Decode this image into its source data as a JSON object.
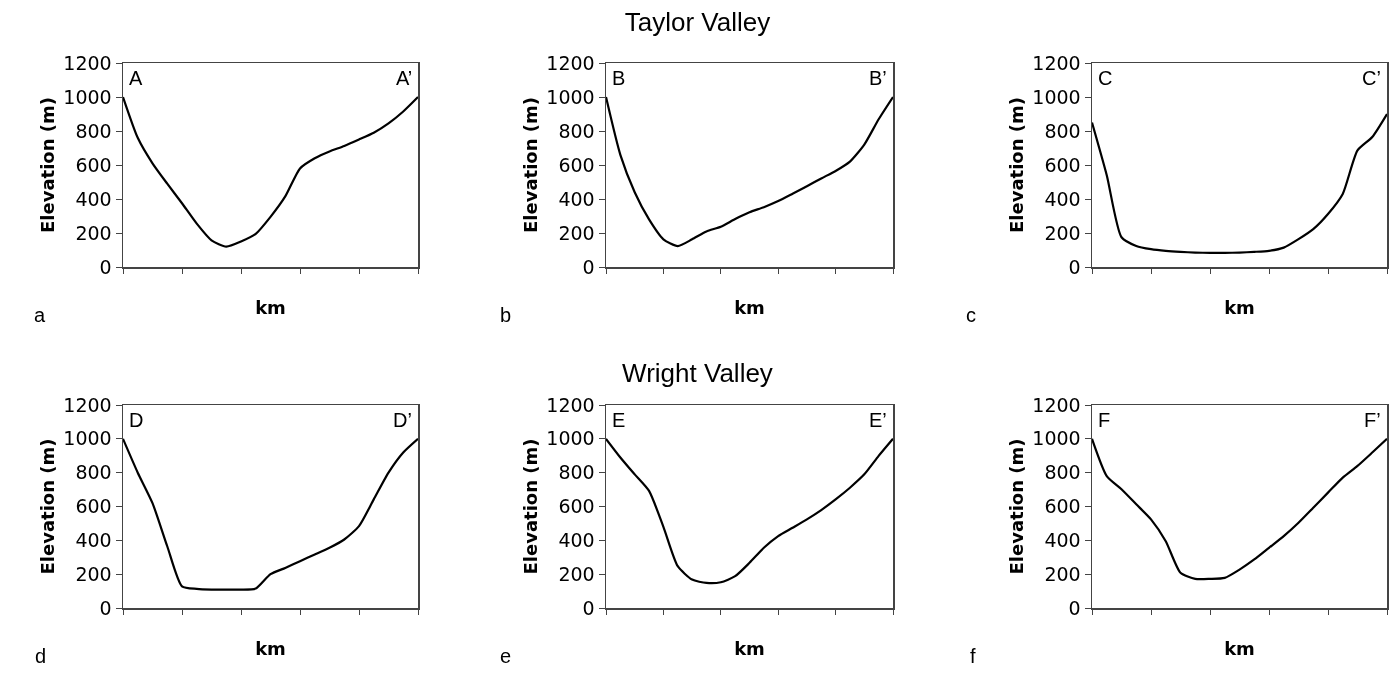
{
  "chart_data": [
    {
      "type": "line",
      "xlabel": "km",
      "ylabel": "Elevation (m)",
      "annotations": [
        "A",
        "A’",
        "a"
      ],
      "categories": [
        null,
        null,
        null,
        null,
        null,
        null,
        null,
        null,
        null,
        null,
        null,
        null,
        null,
        null,
        null,
        null,
        null,
        null,
        null,
        null,
        null
      ],
      "series": [
        {
          "color": "#000000",
          "values": [
            1000,
            760,
            610,
            490,
            375,
            255,
            157,
            120,
            150,
            195,
            295,
            415,
            580,
            640,
            680,
            712,
            750,
            790,
            845,
            915,
            1000
          ]
        }
      ],
      "ylim": [
        0,
        1200
      ],
      "yticks": [
        0,
        200,
        400,
        600,
        800,
        1000,
        1200
      ],
      "tick_labels": "y"
    },
    {
      "type": "line",
      "title": "Taylor Valley",
      "xlabel": "km",
      "ylabel": "Elevation (m)",
      "annotations": [
        "B",
        "B’",
        "b"
      ],
      "categories": [
        null,
        null,
        null,
        null,
        null,
        null,
        null,
        null,
        null,
        null,
        null,
        null,
        null,
        null,
        null,
        null,
        null,
        null,
        null,
        null,
        null
      ],
      "series": [
        {
          "color": "#000000",
          "values": [
            1000,
            660,
            440,
            280,
            163,
            123,
            163,
            209,
            237,
            282,
            322,
            352,
            388,
            431,
            475,
            521,
            565,
            620,
            720,
            869,
            1000
          ]
        }
      ],
      "ylim": [
        0,
        1200
      ],
      "yticks": [
        0,
        200,
        400,
        600,
        800,
        1000,
        1200
      ],
      "tick_labels": "y"
    },
    {
      "type": "line",
      "xlabel": "km",
      "ylabel": "Elevation (m)",
      "annotations": [
        "C",
        "C’",
        "c"
      ],
      "categories": [
        null,
        null,
        null,
        null,
        null,
        null,
        null,
        null,
        null,
        null,
        null,
        null,
        null,
        null,
        null,
        null,
        null,
        null,
        null,
        null,
        null
      ],
      "series": [
        {
          "color": "#000000",
          "values": [
            850,
            540,
            175,
            124,
            105,
            95,
            89,
            85,
            83,
            83,
            85,
            89,
            95,
            114,
            164,
            223,
            312,
            430,
            686,
            765,
            900
          ]
        }
      ],
      "ylim": [
        0,
        1200
      ],
      "yticks": [
        0,
        200,
        400,
        600,
        800,
        1000,
        1200
      ],
      "tick_labels": "y"
    },
    {
      "type": "line",
      "xlabel": "km",
      "ylabel": "Elevation (m)",
      "annotations": [
        "D",
        "D’",
        "d"
      ],
      "categories": [
        null,
        null,
        null,
        null,
        null,
        null,
        null,
        null,
        null,
        null,
        null,
        null,
        null,
        null,
        null,
        null,
        null,
        null,
        null,
        null,
        null
      ],
      "series": [
        {
          "color": "#000000",
          "values": [
            1000,
            800,
            620,
            365,
            128,
            113,
            109,
            109,
            109,
            115,
            200,
            237,
            277,
            316,
            356,
            405,
            484,
            642,
            800,
            919,
            1000
          ]
        }
      ],
      "ylim": [
        0,
        1200
      ],
      "yticks": [
        0,
        200,
        400,
        600,
        800,
        1000,
        1200
      ],
      "tick_labels": "y"
    },
    {
      "type": "line",
      "title": "Wright Valley",
      "xlabel": "km",
      "ylabel": "Elevation (m)",
      "annotations": [
        "E",
        "E’",
        "e"
      ],
      "categories": [
        null,
        null,
        null,
        null,
        null,
        null,
        null,
        null,
        null,
        null,
        null,
        null,
        null,
        null,
        null,
        null,
        null,
        null,
        null,
        null,
        null
      ],
      "series": [
        {
          "color": "#000000",
          "values": [
            1000,
            890,
            790,
            692,
            480,
            247,
            168,
            148,
            152,
            188,
            267,
            356,
            425,
            474,
            524,
            579,
            642,
            711,
            790,
            899,
            1000
          ]
        }
      ],
      "ylim": [
        0,
        1200
      ],
      "yticks": [
        0,
        200,
        400,
        600,
        800,
        1000,
        1200
      ],
      "tick_labels": "y"
    },
    {
      "type": "line",
      "xlabel": "km",
      "ylabel": "Elevation (m)",
      "annotations": [
        "F",
        "F’",
        "f"
      ],
      "categories": [
        null,
        null,
        null,
        null,
        null,
        null,
        null,
        null,
        null,
        null,
        null,
        null,
        null,
        null,
        null,
        null,
        null,
        null,
        null,
        null,
        null
      ],
      "series": [
        {
          "color": "#000000",
          "values": [
            1000,
            780,
            702,
            613,
            524,
            395,
            208,
            172,
            172,
            178,
            227,
            287,
            356,
            425,
            504,
            593,
            682,
            771,
            840,
            919,
            1000
          ]
        }
      ],
      "ylim": [
        0,
        1200
      ],
      "yticks": [
        0,
        200,
        400,
        600,
        800,
        1000,
        1200
      ],
      "tick_labels": "y"
    }
  ]
}
